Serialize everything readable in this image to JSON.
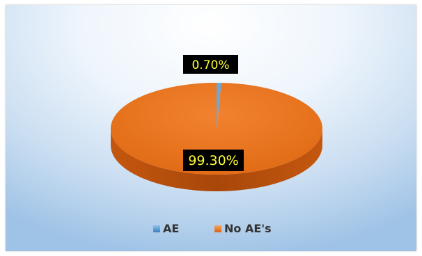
{
  "chart_data": {
    "type": "pie",
    "style": "3d",
    "categories": [
      "AE",
      "No AE's"
    ],
    "values": [
      0.7,
      99.3
    ],
    "data_labels": [
      "0.70%",
      "99.30%"
    ],
    "colors": {
      "AE": "#6aa8d8",
      "No AE's": "#e8731c",
      "side": "#b54f0e",
      "label_bg": "#000000",
      "label_text": "#ffff33"
    },
    "legend": {
      "position": "bottom",
      "entries": [
        {
          "label": "AE",
          "color": "#5b9bd5"
        },
        {
          "label": "No AE's",
          "color": "#ed7d31"
        }
      ]
    },
    "grid": false
  }
}
